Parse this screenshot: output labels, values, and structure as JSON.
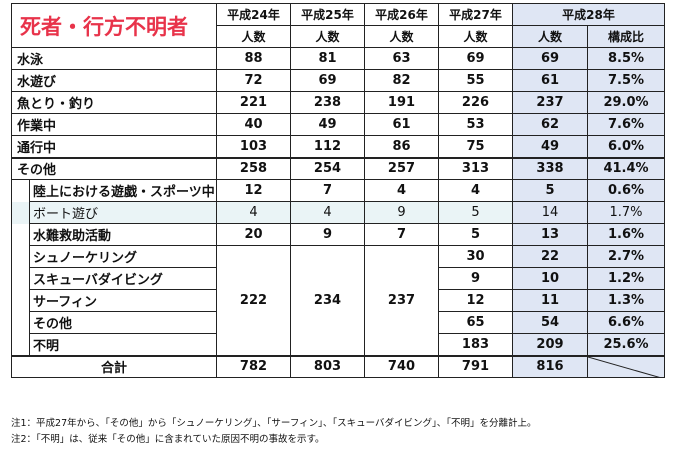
{
  "title": "死者・行方不明者",
  "years": [
    "平成24年",
    "平成25年",
    "平成26年",
    "平成27年",
    "平成28年"
  ],
  "sub_header": {
    "count": "人数",
    "ratio": "構成比"
  },
  "rows": [
    {
      "label": "水泳",
      "values": [
        "88",
        "81",
        "63",
        "69",
        "69"
      ],
      "ratio": "8.5%"
    },
    {
      "label": "水遊び",
      "values": [
        "72",
        "69",
        "82",
        "55",
        "61"
      ],
      "ratio": "7.5%"
    },
    {
      "label": "魚とり・釣り",
      "values": [
        "221",
        "238",
        "191",
        "226",
        "237"
      ],
      "ratio": "29.0%"
    },
    {
      "label": "作業中",
      "values": [
        "40",
        "49",
        "61",
        "53",
        "62"
      ],
      "ratio": "7.6%"
    },
    {
      "label": "通行中",
      "values": [
        "103",
        "112",
        "86",
        "75",
        "49"
      ],
      "ratio": "6.0%"
    },
    {
      "label": "その他",
      "values": [
        "258",
        "254",
        "257",
        "313",
        "338"
      ],
      "ratio": "41.4%"
    }
  ],
  "sub_rows": [
    {
      "label": "陸上における遊戯・スポーツ中",
      "values": [
        "12",
        "7",
        "4",
        "4",
        "5"
      ],
      "ratio": "0.6%"
    },
    {
      "label": "ボート遊び",
      "values": [
        "4",
        "4",
        "9",
        "5",
        "14"
      ],
      "ratio": "1.7%"
    },
    {
      "label": "水難救助活動",
      "values": [
        "20",
        "9",
        "7",
        "5",
        "13"
      ],
      "ratio": "1.6%"
    }
  ],
  "merged_values": [
    "222",
    "234",
    "237"
  ],
  "split_rows": [
    {
      "label": "シュノーケリング",
      "h27": "30",
      "h28": "22",
      "ratio": "2.7%"
    },
    {
      "label": "スキューバダイビング",
      "h27": "9",
      "h28": "10",
      "ratio": "1.2%"
    },
    {
      "label": "サーフィン",
      "h27": "12",
      "h28": "11",
      "ratio": "1.3%"
    },
    {
      "label": "その他",
      "h27": "65",
      "h28": "54",
      "ratio": "6.6%"
    },
    {
      "label": "不明",
      "h27": "183",
      "h28": "209",
      "ratio": "25.6%"
    }
  ],
  "total": {
    "label": "合計",
    "values": [
      "782",
      "803",
      "740",
      "791",
      "816"
    ]
  },
  "notes": [
    "注1：平成27年から、「その他」から「シュノーケリング」、「サーフィン」、「スキューバダイビング」、「不明」を分離計上。",
    "注2：「不明」は、従来「その他」に含まれていた原因不明の事故を示す。"
  ],
  "colors": {
    "title": "#e8334a",
    "shade": "#dfe6f4",
    "boat_row": "#eaf4f6"
  }
}
